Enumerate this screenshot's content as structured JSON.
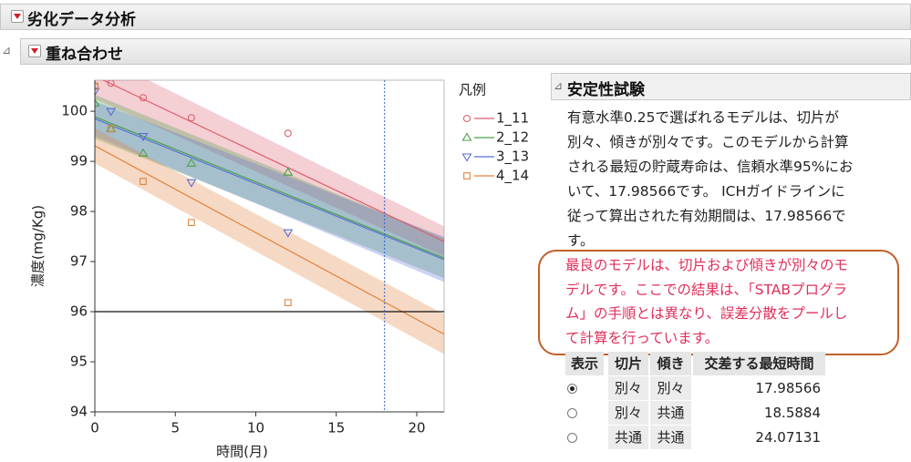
{
  "header": {
    "title": "劣化データ分析",
    "subtitle": "重ね合わせ"
  },
  "chart_data": {
    "type": "scatter",
    "x_label": "時間(月)",
    "y_label": "濃度(mg/Kg)",
    "legend_title": "凡例",
    "xlim": [
      0,
      21.7
    ],
    "ylim": [
      94,
      100.62
    ],
    "xticks": [
      0,
      5,
      10,
      15,
      20
    ],
    "yticks": [
      94,
      95,
      96,
      97,
      98,
      99,
      100
    ],
    "hline": 96,
    "vline": 18,
    "fit_x": [
      0,
      21.7
    ],
    "series": [
      {
        "name": "1_11",
        "color": "#dc5f6c",
        "marker": "circle",
        "x": [
          0,
          1,
          3,
          6,
          12
        ],
        "values": [
          100.5,
          100.56,
          100.27,
          99.87,
          99.56
        ],
        "fit": [
          100.7,
          97.4
        ],
        "band_lower": [
          100.25,
          97.1
        ],
        "band_upper": [
          101.15,
          97.7
        ]
      },
      {
        "name": "2_12",
        "color": "#4aa04a",
        "marker": "triangle-up",
        "x": [
          0,
          1,
          3,
          6,
          12
        ],
        "values": [
          100.16,
          99.65,
          99.16,
          98.96,
          98.78
        ],
        "fit": [
          99.89,
          97.07
        ],
        "band_lower": [
          99.45,
          96.67
        ],
        "band_upper": [
          100.33,
          97.47
        ]
      },
      {
        "name": "3_13",
        "color": "#5a6ed6",
        "marker": "triangle-down",
        "x": [
          0,
          1,
          3,
          6,
          12
        ],
        "values": [
          100.4,
          100.0,
          99.5,
          98.58,
          97.58
        ],
        "fit": [
          99.85,
          97.04
        ],
        "band_lower": [
          99.5,
          96.59
        ],
        "band_upper": [
          100.2,
          97.49
        ]
      },
      {
        "name": "4_14",
        "color": "#e0823c",
        "marker": "square",
        "x": [
          0,
          1,
          3,
          6,
          12
        ],
        "values": [
          100.5,
          99.65,
          98.6,
          97.78,
          96.18
        ],
        "fit": [
          99.31,
          95.55
        ],
        "band_lower": [
          98.96,
          95.15
        ],
        "band_upper": [
          99.66,
          95.95
        ]
      }
    ]
  },
  "report": {
    "title": "安定性試験",
    "lines": [
      "有意水準0.25で選ばれるモデルは、切片が",
      "別々、傾きが別々です。このモデルから計算",
      "される最短の貯蔵寿命は、信頼水準95%にお",
      "いて、17.98566です。 ICHガイドラインに",
      "従って算出された有効期間は、17.98566で",
      "す。"
    ],
    "note": [
      "最良のモデルは、切片および傾きが別々のモ",
      "デルです。ここでの結果は、「STABプログラ",
      "ム」の手順とは異なり、誤差分散をプールし",
      "て計算を行っています。"
    ],
    "table": {
      "columns": [
        "表示",
        "切片",
        "傾き",
        "交差する最短時間"
      ],
      "rows": [
        [
          "別々",
          "別々",
          "17.98566"
        ],
        [
          "別々",
          "共通",
          "18.5884"
        ],
        [
          "共通",
          "共通",
          "24.07131"
        ]
      ]
    }
  }
}
